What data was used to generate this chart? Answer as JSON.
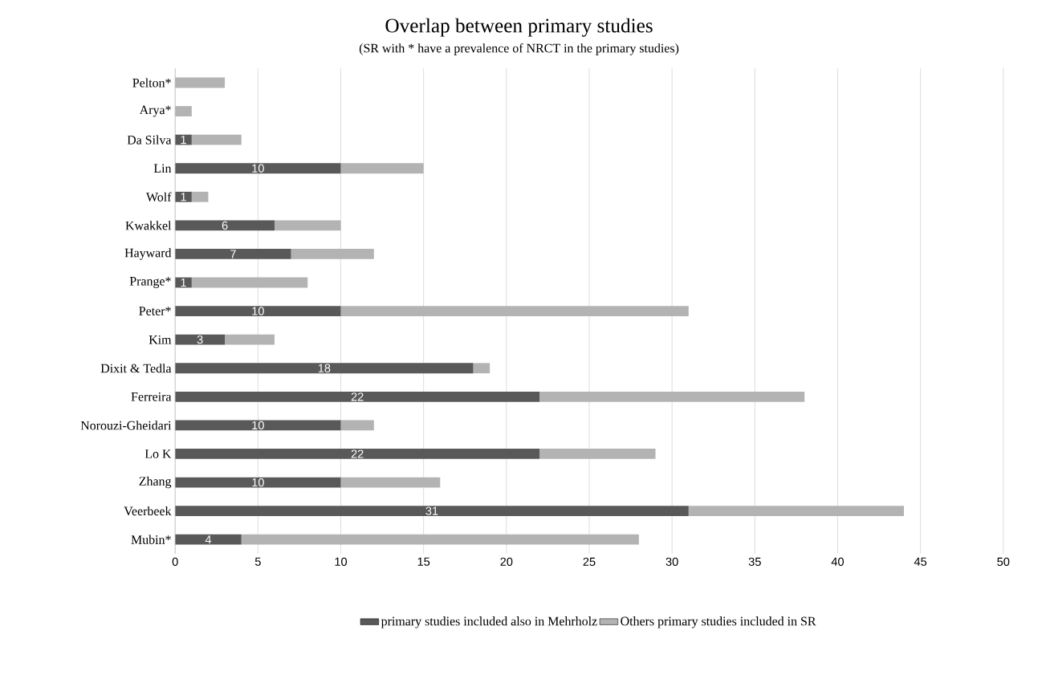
{
  "chart_data": {
    "type": "bar",
    "orientation": "horizontal",
    "stacked": true,
    "title": "Overlap between primary studies",
    "subtitle": "(SR with * have a prevalence of NRCT in the primary studies)",
    "categories": [
      "Pelton*",
      "Arya*",
      "Da Silva",
      "Lin",
      "Wolf",
      "Kwakkel",
      "Hayward",
      "Prange*",
      "Peter*",
      "Kim",
      "Dixit & Tedla",
      "Ferreira",
      "Norouzi-Gheidari",
      "Lo K",
      "Zhang",
      "Veerbeek",
      "Mubin*"
    ],
    "series": [
      {
        "name": "primary studies included also in Mehrholz",
        "color": "#595959",
        "values": [
          0,
          0,
          1,
          10,
          1,
          6,
          7,
          1,
          10,
          3,
          18,
          22,
          10,
          22,
          10,
          31,
          4
        ],
        "value_labels": [
          null,
          null,
          "1",
          "10",
          "1",
          "6",
          "7",
          "1",
          "10",
          "3",
          "18",
          "22",
          "10",
          "22",
          "10",
          "31",
          "4"
        ]
      },
      {
        "name": "Others primary studies included in SR",
        "color": "#b3b3b3",
        "values": [
          3,
          1,
          3,
          5,
          1,
          4,
          5,
          7,
          21,
          3,
          1,
          16,
          2,
          7,
          6,
          13,
          24
        ]
      }
    ],
    "xlim": [
      0,
      50
    ],
    "xticks": [
      0,
      5,
      10,
      15,
      20,
      25,
      30,
      35,
      40,
      45,
      50
    ],
    "grid": "x",
    "legend": "bottom"
  }
}
